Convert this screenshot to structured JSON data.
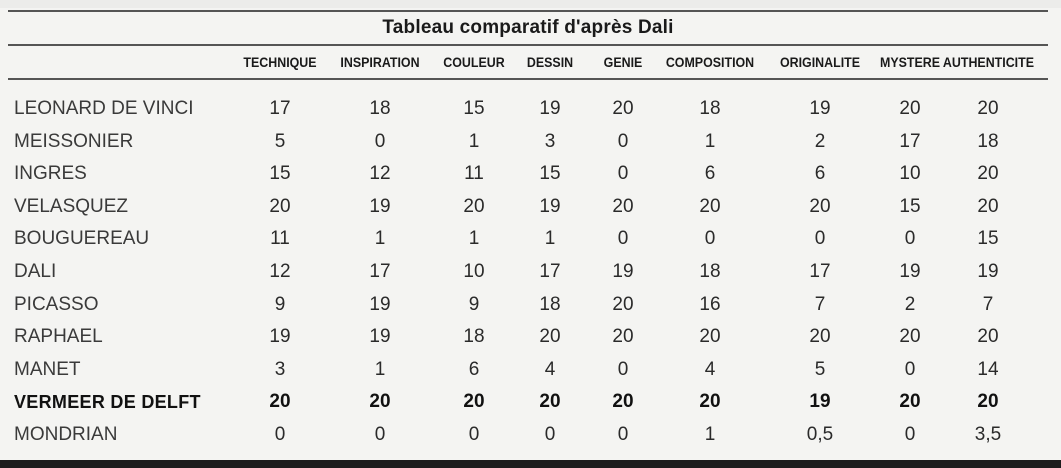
{
  "table": {
    "title": "Tableau comparatif d'après Dali",
    "columns": [
      "TECHNIQUE",
      "INSPIRATION",
      "COULEUR",
      "DESSIN",
      "GENIE",
      "COMPOSITION",
      "ORIGINALITE",
      "MYSTERE",
      "AUTHENTICITE"
    ],
    "rows": [
      {
        "name": "LEONARD DE VINCI",
        "values": [
          "17",
          "18",
          "15",
          "19",
          "20",
          "18",
          "19",
          "20",
          "20"
        ],
        "bold": false
      },
      {
        "name": "MEISSONIER",
        "values": [
          "5",
          "0",
          "1",
          "3",
          "0",
          "1",
          "2",
          "17",
          "18"
        ],
        "bold": false
      },
      {
        "name": "INGRES",
        "values": [
          "15",
          "12",
          "11",
          "15",
          "0",
          "6",
          "6",
          "10",
          "20"
        ],
        "bold": false
      },
      {
        "name": "VELASQUEZ",
        "values": [
          "20",
          "19",
          "20",
          "19",
          "20",
          "20",
          "20",
          "15",
          "20"
        ],
        "bold": false
      },
      {
        "name": "BOUGUEREAU",
        "values": [
          "11",
          "1",
          "1",
          "1",
          "0",
          "0",
          "0",
          "0",
          "15"
        ],
        "bold": false
      },
      {
        "name": "DALI",
        "values": [
          "12",
          "17",
          "10",
          "17",
          "19",
          "18",
          "17",
          "19",
          "19"
        ],
        "bold": false
      },
      {
        "name": "PICASSO",
        "values": [
          "9",
          "19",
          "9",
          "18",
          "20",
          "16",
          "7",
          "2",
          "7"
        ],
        "bold": false
      },
      {
        "name": "RAPHAEL",
        "values": [
          "19",
          "19",
          "18",
          "20",
          "20",
          "20",
          "20",
          "20",
          "20"
        ],
        "bold": false
      },
      {
        "name": "MANET",
        "values": [
          "3",
          "1",
          "6",
          "4",
          "0",
          "4",
          "5",
          "0",
          "14"
        ],
        "bold": false
      },
      {
        "name": "VERMEER DE DELFT",
        "values": [
          "20",
          "20",
          "20",
          "20",
          "20",
          "20",
          "19",
          "20",
          "20"
        ],
        "bold": true
      },
      {
        "name": "MONDRIAN",
        "values": [
          "0",
          "0",
          "0",
          "0",
          "0",
          "1",
          "0,5",
          "0",
          "3,5"
        ],
        "bold": false
      }
    ]
  }
}
